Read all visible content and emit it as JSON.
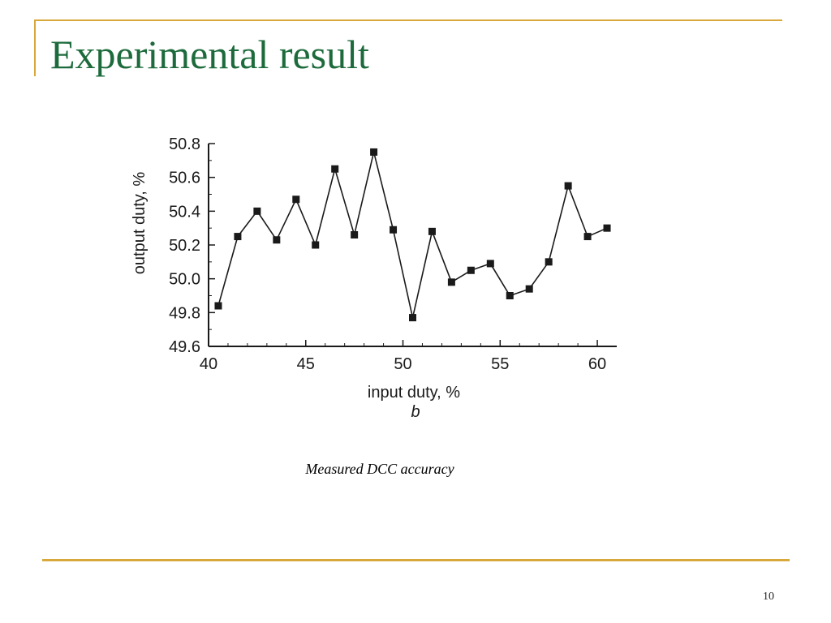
{
  "slide": {
    "title": "Experimental result",
    "caption": "Measured DCC accuracy",
    "page_number": "10"
  },
  "colors": {
    "title": "#1d6b3c",
    "accent_rule": "#d8a93a",
    "line": "#1a1a1a",
    "text": "#1a1a1a"
  },
  "chart_data": {
    "type": "line",
    "xlabel": "input duty, %",
    "ylabel": "output duty, %",
    "sublabel": "b",
    "xlim": [
      40,
      61
    ],
    "ylim": [
      49.6,
      50.8
    ],
    "xticks": [
      40,
      45,
      50,
      55,
      60
    ],
    "yticks": [
      "49.6",
      "49.8",
      "50.0",
      "50.2",
      "50.4",
      "50.6",
      "50.8"
    ],
    "grid": false,
    "series": [
      {
        "x": [
          40.5,
          41.5,
          42.5,
          43.5,
          44.5,
          45.5,
          46.5,
          47.5,
          48.5,
          49.5,
          50.5,
          51.5,
          52.5,
          53.5,
          54.5,
          55.5,
          56.5,
          57.5,
          58.5,
          59.5,
          60.5
        ],
        "y": [
          49.84,
          50.25,
          50.4,
          50.23,
          50.47,
          50.2,
          50.65,
          50.26,
          50.75,
          50.29,
          49.77,
          50.28,
          49.98,
          50.05,
          50.09,
          49.9,
          49.94,
          50.1,
          50.55,
          50.25,
          50.3
        ]
      }
    ]
  }
}
